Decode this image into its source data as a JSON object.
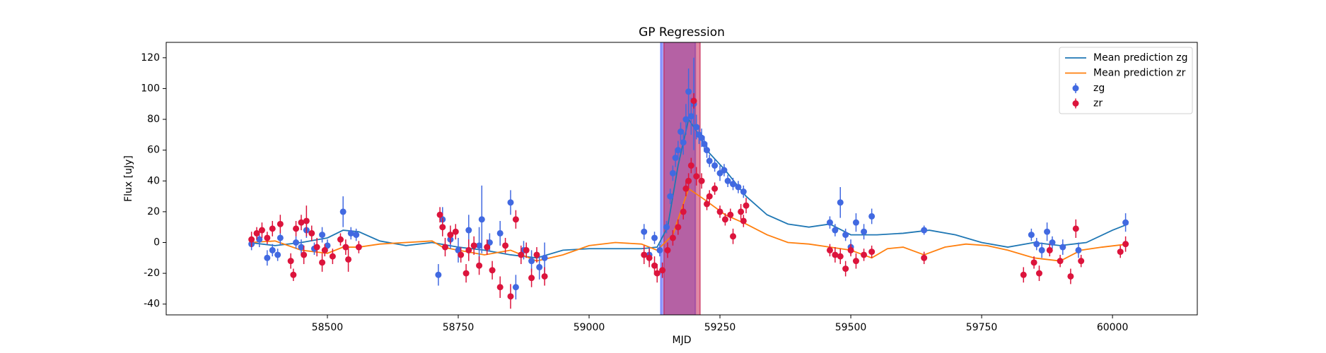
{
  "chart_data": {
    "type": "scatter",
    "title": "GP Regression",
    "x_label": "MJD",
    "y_label": "Flux [uJy]",
    "xlim": [
      58192,
      60162
    ],
    "ylim": [
      -47,
      130
    ],
    "xticks": [
      58500,
      58750,
      59000,
      59250,
      59500,
      59750,
      60000
    ],
    "yticks": [
      -40,
      -20,
      0,
      20,
      40,
      60,
      80,
      100,
      120
    ],
    "legend": "upper right",
    "spans": [
      {
        "x0": 59137,
        "x1": 59203,
        "color": "#4d5cff"
      },
      {
        "x0": 59143,
        "x1": 59212,
        "color": "#c8285a"
      }
    ],
    "series": [
      {
        "name": "Mean prediction zg",
        "type": "line",
        "color": "#1f77b4",
        "x": [
          58350,
          58400,
          58450,
          58500,
          58530,
          58560,
          58600,
          58650,
          58700,
          58750,
          58800,
          58850,
          58900,
          58950,
          59000,
          59050,
          59100,
          59130,
          59150,
          59170,
          59190,
          59210,
          59230,
          59260,
          59300,
          59340,
          59380,
          59420,
          59460,
          59500,
          59550,
          59600,
          59650,
          59700,
          59750,
          59800,
          59850,
          59900,
          59950,
          60000,
          60030
        ],
        "values": [
          0,
          -2,
          0,
          3,
          8,
          7,
          1,
          -2,
          0,
          -3,
          -5,
          -8,
          -10,
          -5,
          -4,
          -4,
          -4,
          -3,
          10,
          50,
          80,
          70,
          58,
          47,
          30,
          18,
          12,
          10,
          12,
          5,
          5,
          6,
          8,
          5,
          0,
          -3,
          0,
          -2,
          0,
          8,
          12
        ]
      },
      {
        "name": "Mean prediction zr",
        "type": "line",
        "color": "#ff7f0e",
        "x": [
          58350,
          58400,
          58450,
          58500,
          58530,
          58560,
          58600,
          58650,
          58700,
          58720,
          58750,
          58800,
          58850,
          58900,
          58950,
          59000,
          59050,
          59100,
          59130,
          59160,
          59190,
          59220,
          59260,
          59300,
          59340,
          59380,
          59420,
          59460,
          59500,
          59540,
          59570,
          59600,
          59640,
          59680,
          59720,
          59760,
          59800,
          59850,
          59900,
          59940,
          59980,
          60030
        ],
        "values": [
          0,
          1,
          -5,
          -7,
          -3,
          -3,
          -1,
          0,
          1,
          -3,
          -5,
          -8,
          -5,
          -12,
          -8,
          -2,
          0,
          -1,
          -5,
          5,
          35,
          28,
          18,
          12,
          5,
          0,
          -1,
          -3,
          -5,
          -10,
          -4,
          -3,
          -8,
          -3,
          -1,
          -2,
          -5,
          -10,
          -12,
          -5,
          -3,
          -1
        ]
      },
      {
        "name": "zg",
        "type": "errorbar",
        "color": "#4169e1",
        "x": [
          58355,
          58370,
          58385,
          58395,
          58405,
          58410,
          58440,
          58450,
          58460,
          58475,
          58490,
          58500,
          58530,
          58545,
          58555,
          58712,
          58720,
          58735,
          58750,
          58770,
          58790,
          58795,
          58810,
          58830,
          58850,
          58860,
          58875,
          58890,
          58905,
          58915,
          59105,
          59115,
          59125,
          59135,
          59148,
          59155,
          59160,
          59165,
          59170,
          59175,
          59180,
          59185,
          59190,
          59195,
          59200,
          59205,
          59210,
          59215,
          59220,
          59225,
          59230,
          59240,
          59250,
          59258,
          59265,
          59275,
          59285,
          59295,
          59460,
          59470,
          59480,
          59490,
          59500,
          59510,
          59525,
          59540,
          59640,
          59845,
          59855,
          59865,
          59875,
          59885,
          59905,
          59935,
          60025
        ],
        "values": [
          -1,
          2,
          -10,
          -5,
          -8,
          3,
          0,
          -3,
          8,
          -4,
          5,
          -2,
          20,
          6,
          5,
          -21,
          15,
          2,
          -5,
          8,
          -2,
          15,
          0,
          6,
          26,
          -29,
          -5,
          -12,
          -16,
          -10,
          7,
          -8,
          3,
          -5,
          10,
          30,
          45,
          55,
          60,
          72,
          65,
          80,
          98,
          82,
          90,
          75,
          70,
          68,
          64,
          60,
          53,
          50,
          45,
          47,
          40,
          38,
          36,
          33,
          13,
          8,
          26,
          5,
          -3,
          13,
          7,
          17,
          8,
          5,
          -1,
          -5,
          7,
          0,
          -3,
          -5,
          13
        ],
        "errors": [
          4,
          5,
          5,
          4,
          4,
          5,
          4,
          5,
          5,
          4,
          5,
          4,
          10,
          4,
          4,
          7,
          8,
          6,
          8,
          10,
          12,
          22,
          6,
          8,
          8,
          8,
          6,
          7,
          8,
          10,
          5,
          5,
          4,
          4,
          4,
          5,
          5,
          6,
          6,
          6,
          8,
          10,
          15,
          12,
          30,
          8,
          6,
          6,
          5,
          5,
          4,
          4,
          5,
          4,
          4,
          4,
          4,
          4,
          4,
          4,
          10,
          4,
          5,
          6,
          5,
          5,
          3,
          4,
          4,
          5,
          6,
          4,
          5,
          5,
          6
        ]
      },
      {
        "name": "zr",
        "type": "errorbar",
        "color": "#dc143c",
        "x": [
          58355,
          58365,
          58375,
          58385,
          58395,
          58410,
          58430,
          58435,
          58440,
          58450,
          58455,
          58460,
          58470,
          58480,
          58490,
          58495,
          58510,
          58525,
          58535,
          58540,
          58560,
          58715,
          58720,
          58725,
          58735,
          58745,
          58755,
          58765,
          58770,
          58780,
          58790,
          58805,
          58815,
          58830,
          58840,
          58850,
          58860,
          58870,
          58880,
          58890,
          58900,
          58915,
          59105,
          59115,
          59125,
          59130,
          59140,
          59150,
          59160,
          59170,
          59180,
          59185,
          59190,
          59195,
          59200,
          59205,
          59215,
          59225,
          59230,
          59240,
          59250,
          59260,
          59270,
          59275,
          59290,
          59295,
          59300,
          59460,
          59470,
          59480,
          59490,
          59500,
          59510,
          59525,
          59540,
          59640,
          59830,
          59850,
          59860,
          59880,
          59900,
          59920,
          59930,
          59940,
          60015,
          60025
        ],
        "values": [
          2,
          6,
          8,
          3,
          9,
          12,
          -12,
          -21,
          9,
          13,
          -8,
          14,
          6,
          -3,
          -13,
          -5,
          -9,
          2,
          -3,
          -11,
          -3,
          18,
          10,
          -3,
          5,
          7,
          -8,
          -20,
          -5,
          -2,
          -15,
          -3,
          -18,
          -29,
          -2,
          -35,
          15,
          -8,
          -5,
          -23,
          -8,
          -22,
          -8,
          -10,
          -15,
          -20,
          -18,
          -5,
          3,
          10,
          20,
          35,
          40,
          50,
          92,
          43,
          40,
          25,
          30,
          35,
          20,
          15,
          18,
          4,
          20,
          14,
          24,
          -5,
          -8,
          -9,
          -17,
          -5,
          -12,
          -8,
          -6,
          -10,
          -21,
          -13,
          -20,
          -5,
          -12,
          -22,
          9,
          -12,
          -6,
          -1
        ],
        "errors": [
          5,
          4,
          5,
          4,
          5,
          6,
          5,
          4,
          5,
          5,
          6,
          10,
          5,
          6,
          6,
          4,
          5,
          4,
          5,
          8,
          4,
          5,
          6,
          6,
          6,
          5,
          5,
          6,
          7,
          6,
          6,
          5,
          6,
          7,
          5,
          8,
          6,
          6,
          5,
          6,
          5,
          6,
          6,
          6,
          6,
          6,
          5,
          5,
          5,
          5,
          5,
          5,
          5,
          5,
          5,
          6,
          5,
          4,
          4,
          4,
          4,
          4,
          4,
          5,
          5,
          4,
          5,
          4,
          5,
          5,
          5,
          4,
          5,
          4,
          4,
          4,
          5,
          4,
          5,
          4,
          4,
          5,
          6,
          4,
          4,
          5
        ]
      }
    ]
  }
}
